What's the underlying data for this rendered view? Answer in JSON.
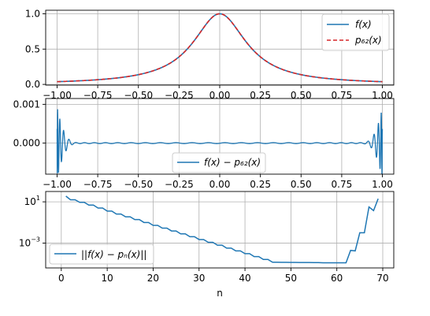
{
  "chart_data": [
    {
      "type": "line",
      "function": "runge",
      "xlim": [
        -1.07,
        1.07
      ],
      "ylim": [
        -0.01,
        1.05
      ],
      "xticks": [
        -1.0,
        -0.75,
        -0.5,
        -0.25,
        0.0,
        0.25,
        0.5,
        0.75,
        1.0
      ],
      "xtick_labels": [
        "−1.00",
        "−0.75",
        "−0.50",
        "−0.25",
        "0.00",
        "0.25",
        "0.50",
        "0.75",
        "1.00"
      ],
      "yticks": [
        0.0,
        0.5,
        1.0
      ],
      "ytick_labels": [
        "0.0",
        "0.5",
        "1.0"
      ],
      "grid": true,
      "legend": "top-right",
      "series": [
        {
          "name": "f(x)",
          "color": "#1f77b4",
          "style": "solid"
        },
        {
          "name": "p₆₂(x)",
          "color": "#d62728",
          "style": "dashed"
        }
      ]
    },
    {
      "type": "line",
      "function": "error",
      "xlim": [
        -1.07,
        1.07
      ],
      "ylim": [
        -0.0008,
        0.00115
      ],
      "xticks": [
        -1.0,
        -0.75,
        -0.5,
        -0.25,
        0.0,
        0.25,
        0.5,
        0.75,
        1.0
      ],
      "xtick_labels": [
        "−1.00",
        "−0.75",
        "−0.50",
        "−0.25",
        "0.00",
        "0.25",
        "0.50",
        "0.75",
        "1.00"
      ],
      "yticks": [
        0.0,
        0.001
      ],
      "ytick_labels": [
        "0.000",
        "0.001"
      ],
      "grid": true,
      "legend": "bottom-center",
      "series": [
        {
          "name": "f(x) − p₆₂(x)",
          "color": "#1f77b4",
          "style": "solid"
        }
      ]
    },
    {
      "type": "line",
      "function": "norm",
      "yscale": "log",
      "xlim": [
        -3.4,
        72.4
      ],
      "ylim_log10": [
        -5.4,
        2.0
      ],
      "xticks": [
        0,
        10,
        20,
        30,
        40,
        50,
        60,
        70
      ],
      "xtick_labels": [
        "0",
        "10",
        "20",
        "30",
        "40",
        "50",
        "60",
        "70"
      ],
      "yticks_log10": [
        1,
        -3
      ],
      "ytick_labels": [
        "10",
        "10"
      ],
      "ytick_exponents": [
        "1",
        "−3"
      ],
      "xlabel": "n",
      "grid": true,
      "legend": "bottom-left",
      "series": [
        {
          "name": "||f(x) − pₙ(x)||",
          "color": "#1f77b4",
          "x": [
            1,
            2,
            3,
            4,
            5,
            6,
            7,
            8,
            9,
            10,
            11,
            12,
            13,
            14,
            15,
            16,
            17,
            18,
            19,
            20,
            21,
            22,
            23,
            24,
            25,
            26,
            27,
            28,
            29,
            30,
            31,
            32,
            33,
            34,
            35,
            36,
            37,
            38,
            39,
            40,
            41,
            42,
            43,
            44,
            45,
            46,
            47,
            48,
            49,
            50,
            51,
            52,
            53,
            54,
            55,
            56,
            57,
            58,
            59,
            60,
            61,
            62,
            63,
            64,
            65,
            66,
            67,
            68,
            69
          ],
          "y_log10": [
            1.55,
            1.2,
            1.2,
            0.95,
            0.95,
            0.68,
            0.68,
            0.4,
            0.4,
            0.1,
            0.1,
            -0.18,
            -0.18,
            -0.45,
            -0.45,
            -0.72,
            -0.72,
            -1.0,
            -1.0,
            -1.28,
            -1.28,
            -1.55,
            -1.55,
            -1.82,
            -1.82,
            -2.1,
            -2.1,
            -2.38,
            -2.38,
            -2.65,
            -2.65,
            -2.92,
            -2.92,
            -3.2,
            -3.2,
            -3.48,
            -3.48,
            -3.75,
            -3.75,
            -4.02,
            -4.02,
            -4.3,
            -4.3,
            -4.58,
            -4.58,
            -4.85,
            -4.85,
            -4.86,
            -4.86,
            -4.87,
            -4.87,
            -4.88,
            -4.88,
            -4.88,
            -4.89,
            -4.89,
            -4.9,
            -4.9,
            -4.9,
            -4.9,
            -4.9,
            -4.9,
            -3.7,
            -3.75,
            -2.0,
            -2.0,
            0.5,
            0.15,
            1.3
          ]
        }
      ]
    }
  ]
}
